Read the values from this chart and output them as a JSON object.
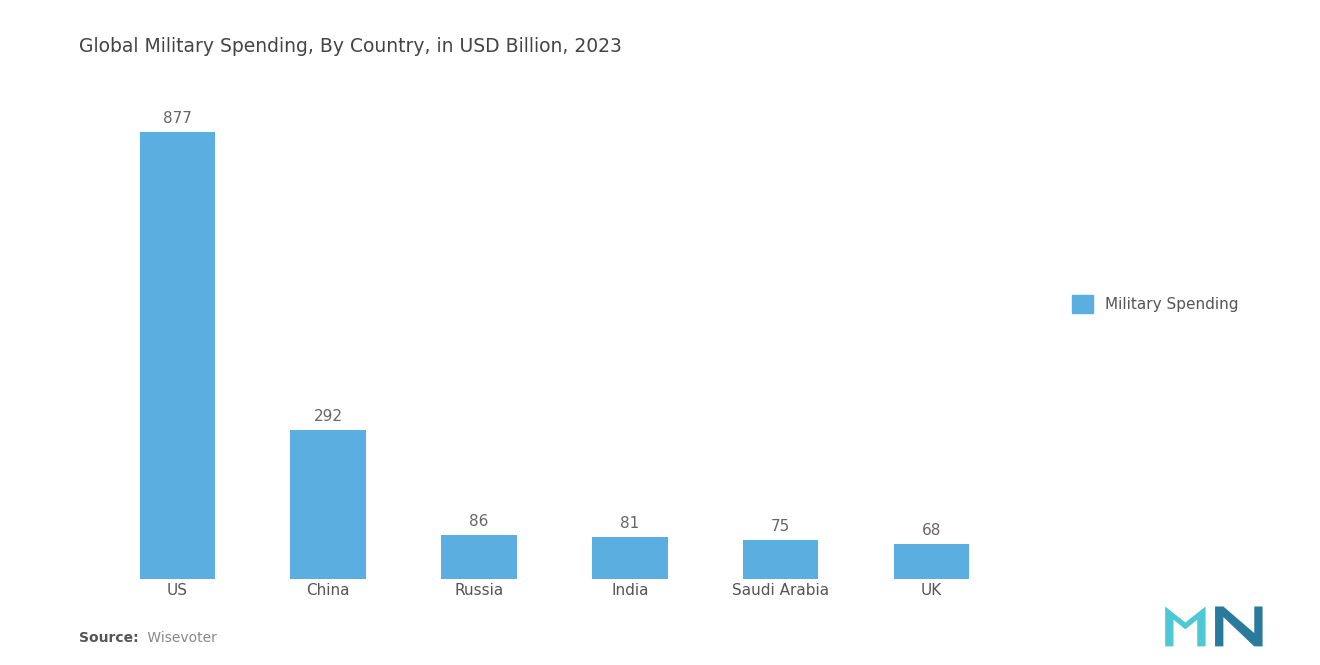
{
  "title": "Global Military Spending, By Country, in USD Billion, 2023",
  "categories": [
    "US",
    "China",
    "Russia",
    "India",
    "Saudi Arabia",
    "UK"
  ],
  "values": [
    877,
    292,
    86,
    81,
    75,
    68
  ],
  "bar_color": "#5baee0",
  "background_color": "#ffffff",
  "title_fontsize": 13.5,
  "label_fontsize": 11,
  "value_fontsize": 11,
  "tick_fontsize": 11,
  "legend_label": "Military Spending",
  "source_bold": "Source:",
  "source_rest": " Wisevoter",
  "ylim": [
    0,
    980
  ]
}
